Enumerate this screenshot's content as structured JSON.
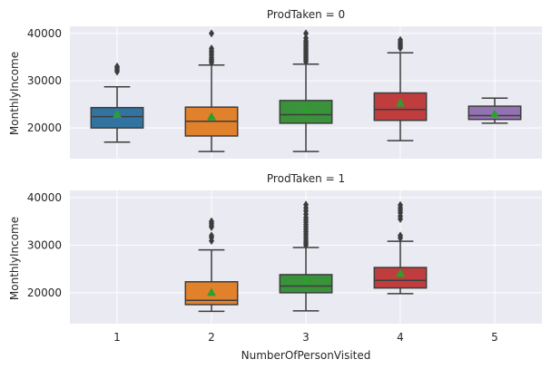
{
  "chart_data": {
    "type": "boxplot",
    "xlabel": "NumberOfPersonVisited",
    "ylabel": "MonthlyIncome",
    "categories": [
      "1",
      "2",
      "3",
      "4",
      "5"
    ],
    "colors": [
      "#3274a1",
      "#e1812c",
      "#3a923a",
      "#c03d3e",
      "#9372b2"
    ],
    "mean_marker_color": "#2ca02c",
    "grid": true,
    "panel_background": "#eaeaf2",
    "panels": [
      {
        "title": "ProdTaken = 0",
        "ylim": [
          13500,
          41500
        ],
        "yticks": [
          20000,
          30000,
          40000
        ],
        "ytick_labels": [
          "20000",
          "30000",
          "40000"
        ],
        "boxes": [
          {
            "category": "1",
            "whisker_low": 17000,
            "q1": 20000,
            "median": 22400,
            "q3": 24300,
            "whisker_high": 28700,
            "mean": 22900,
            "outliers": [
              31900,
              32300,
              32700,
              33000
            ]
          },
          {
            "category": "2",
            "whisker_low": 15000,
            "q1": 18300,
            "median": 21400,
            "q3": 24400,
            "whisker_high": 33300,
            "mean": 22400,
            "outliers": [
              33800,
              34200,
              34500,
              34900,
              35400,
              35900,
              36300,
              36800,
              40000
            ]
          },
          {
            "category": "3",
            "whisker_low": 15000,
            "q1": 21000,
            "median": 22800,
            "q3": 25800,
            "whisker_high": 33500,
            "mean": 23900,
            "outliers": [
              34000,
              34400,
              34800,
              35200,
              35600,
              36000,
              36400,
              36800,
              37200,
              37600,
              38000,
              38400,
              39000,
              40000
            ]
          },
          {
            "category": "4",
            "whisker_low": 17300,
            "q1": 21600,
            "median": 23900,
            "q3": 27400,
            "whisker_high": 35900,
            "mean": 25300,
            "outliers": [
              36900,
              37300,
              37700,
              38100,
              38600
            ]
          },
          {
            "category": "5",
            "whisker_low": 21000,
            "q1": 21800,
            "median": 22600,
            "q3": 24600,
            "whisker_high": 26300,
            "mean": 23000,
            "outliers": []
          }
        ]
      },
      {
        "title": "ProdTaken = 1",
        "ylim": [
          13500,
          41500
        ],
        "yticks": [
          20000,
          30000,
          40000
        ],
        "ytick_labels": [
          "20000",
          "30000",
          "40000"
        ],
        "boxes": [
          {
            "category": "2",
            "whisker_low": 16100,
            "q1": 17500,
            "median": 18400,
            "q3": 22300,
            "whisker_high": 29000,
            "mean": 20100,
            "outliers": [
              30900,
              31600,
              32000,
              33800,
              34200,
              34600,
              35000
            ]
          },
          {
            "category": "3",
            "whisker_low": 16200,
            "q1": 20000,
            "median": 21400,
            "q3": 23800,
            "whisker_high": 29500,
            "mean": 22600,
            "outliers": [
              30000,
              30400,
              30800,
              31300,
              31800,
              32300,
              32800,
              33300,
              33800,
              34300,
              34800,
              35300,
              35800,
              36500,
              37200,
              37800,
              38500
            ]
          },
          {
            "category": "4",
            "whisker_low": 19800,
            "q1": 21000,
            "median": 22600,
            "q3": 25300,
            "whisker_high": 30800,
            "mean": 24100,
            "outliers": [
              31500,
              32000,
              35500,
              36100,
              36800,
              37300,
              37800,
              38400
            ]
          }
        ]
      }
    ]
  }
}
